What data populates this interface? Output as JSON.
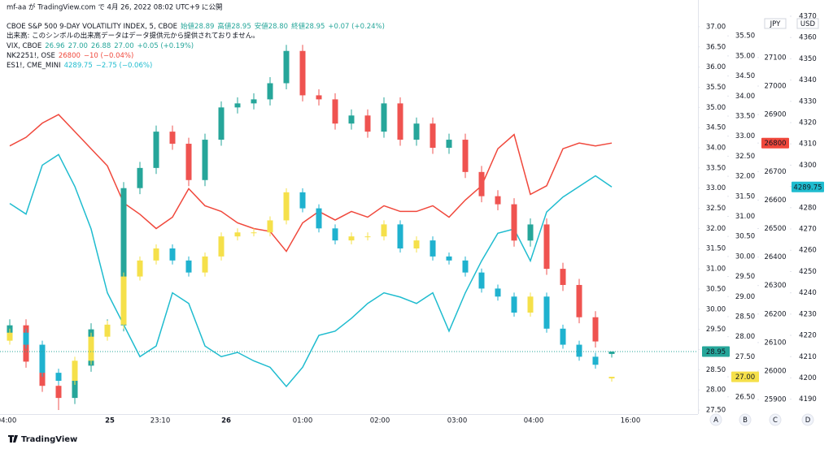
{
  "header": "mf-aa が TradingView.com で 4月 26, 2022 08:02 UTC+9 に公開",
  "volume_note": "出来高: このシンボルの出来高データはデータ提供元から提供されておりません。",
  "footer": "TradingView",
  "chart_data": {
    "type": "candlestick",
    "x_labels": [
      "04:00",
      "25",
      "23:10",
      "26",
      "01:00",
      "02:00",
      "03:00",
      "04:00",
      "16:00"
    ],
    "grid": false,
    "axes": [
      {
        "name": "A",
        "ylim": [
          27.4,
          37.26
        ],
        "yticks": [
          {
            "value": 27.5,
            "label": "27.50"
          },
          {
            "value": 28,
            "label": "28.00"
          },
          {
            "value": 28.5,
            "label": "28.50"
          },
          {
            "value": 29,
            "label": "29.00"
          },
          {
            "value": 29.5,
            "label": "29.50"
          },
          {
            "value": 30,
            "label": "30.00"
          },
          {
            "value": 30.5,
            "label": "30.50"
          },
          {
            "value": 31,
            "label": "31.00"
          },
          {
            "value": 31.5,
            "label": "31.50"
          },
          {
            "value": 32,
            "label": "32.00"
          },
          {
            "value": 32.5,
            "label": "32.50"
          },
          {
            "value": 33,
            "label": "33.00"
          },
          {
            "value": 33.5,
            "label": "33.50"
          },
          {
            "value": 34,
            "label": "34.00"
          },
          {
            "value": 34.5,
            "label": "34.50"
          },
          {
            "value": 35,
            "label": "35.00"
          },
          {
            "value": 35.5,
            "label": "35.50"
          },
          {
            "value": 36,
            "label": "36.00"
          },
          {
            "value": 36.5,
            "label": "36.50"
          },
          {
            "value": 37,
            "label": "37.00"
          }
        ]
      },
      {
        "name": "B",
        "ylim": [
          26.07,
          35.99
        ],
        "yticks": [
          {
            "value": 26.5,
            "label": "26.50"
          },
          {
            "value": 27,
            "label": "27.00"
          },
          {
            "value": 27.5,
            "label": "27.50"
          },
          {
            "value": 28,
            "label": "28.00"
          },
          {
            "value": 28.5,
            "label": "28.50"
          },
          {
            "value": 29,
            "label": "29.00"
          },
          {
            "value": 29.5,
            "label": "29.50"
          },
          {
            "value": 30,
            "label": "30.00"
          },
          {
            "value": 30.5,
            "label": "30.50"
          },
          {
            "value": 31,
            "label": "31.00"
          },
          {
            "value": 31.5,
            "label": "31.50"
          },
          {
            "value": 32,
            "label": "32.00"
          },
          {
            "value": 32.5,
            "label": "32.50"
          },
          {
            "value": 33,
            "label": "33.00"
          },
          {
            "value": 33.5,
            "label": "33.50"
          },
          {
            "value": 34,
            "label": "34.00"
          },
          {
            "value": 34.5,
            "label": "34.50"
          },
          {
            "value": 35,
            "label": "35.00"
          },
          {
            "value": 35.5,
            "label": "35.50"
          }
        ]
      },
      {
        "name": "C",
        "unit": "JPY",
        "ylim": [
          25849,
          27245
        ],
        "yticks": [
          25900,
          26000,
          26100,
          26200,
          26300,
          26400,
          26500,
          26600,
          26700,
          26800,
          26900,
          27000,
          27100
        ]
      },
      {
        "name": "D",
        "unit": "USD",
        "ylim": [
          4183,
          4370
        ],
        "yticks": [
          4190,
          4200,
          4210,
          4220,
          4230,
          4240,
          4250,
          4260,
          4270,
          4280,
          4290,
          4300,
          4310,
          4320,
          4330,
          4340,
          4350,
          4360,
          4370
        ]
      }
    ],
    "series": [
      {
        "name": "CBOE S&P 500 9-DAY VOLATILITY INDEX, 5, CBOE",
        "type": "candlestick",
        "axis": "A",
        "legend_values": [
          "始値28.89",
          "高値28.95",
          "安値28.80",
          "終値28.95",
          "+0.07 (+0.24%)"
        ],
        "legend_color": "#26a69a",
        "up_color": "#26a69a",
        "down_color": "#ef5350",
        "last_label": "28.95",
        "open": [
          29.3,
          29.6,
          28.7,
          28.1,
          27.8,
          28.6,
          29.5,
          29.6,
          33.0,
          33.5,
          34.4,
          34.1,
          33.2,
          34.2,
          35.0,
          35.1,
          35.2,
          35.6,
          36.4,
          35.3,
          35.2,
          34.6,
          34.8,
          34.4,
          35.1,
          34.2,
          34.6,
          34.0,
          34.2,
          33.4,
          32.8,
          32.6,
          31.7,
          32.1,
          31.0,
          30.6,
          29.8,
          28.89
        ],
        "high": [
          29.75,
          29.75,
          28.85,
          28.25,
          28.75,
          29.65,
          29.75,
          33.15,
          33.65,
          34.55,
          34.55,
          34.25,
          34.35,
          35.15,
          35.25,
          35.35,
          35.75,
          36.55,
          36.55,
          35.45,
          35.35,
          34.95,
          34.95,
          35.25,
          35.25,
          34.75,
          34.75,
          34.35,
          34.35,
          33.55,
          32.95,
          32.75,
          32.25,
          32.25,
          31.15,
          30.75,
          29.95,
          28.95
        ],
        "low": [
          29.15,
          28.55,
          27.95,
          27.5,
          27.65,
          28.45,
          29.35,
          29.45,
          32.85,
          33.35,
          33.95,
          33.05,
          33.05,
          34.05,
          34.85,
          34.95,
          35.05,
          35.45,
          35.15,
          35.05,
          34.45,
          34.45,
          34.25,
          34.25,
          34.05,
          34.05,
          33.85,
          33.85,
          33.25,
          32.65,
          32.45,
          31.55,
          31.55,
          30.85,
          30.45,
          29.65,
          29.05,
          28.8
        ],
        "close": [
          29.6,
          28.7,
          28.1,
          27.8,
          28.6,
          29.5,
          29.6,
          33.0,
          33.5,
          34.4,
          34.1,
          33.2,
          34.2,
          35.0,
          35.1,
          35.2,
          35.6,
          36.4,
          35.3,
          35.2,
          34.6,
          34.8,
          34.4,
          35.1,
          34.2,
          34.6,
          34.0,
          34.2,
          33.4,
          32.8,
          32.6,
          31.7,
          32.1,
          31.0,
          30.6,
          29.8,
          29.2,
          28.95
        ]
      },
      {
        "name": "VIX, CBOE",
        "type": "candlestick",
        "axis": "B",
        "legend_values": [
          "26.96",
          "27.00",
          "26.88",
          "27.00",
          "+0.05 (+0.19%)"
        ],
        "legend_color": "#26a69a",
        "up_color": "#f5e04a",
        "down_color": "#1fb2cf",
        "last_label": "27.00",
        "open": [
          27.9,
          28.1,
          27.8,
          27.1,
          26.9,
          27.4,
          28.0,
          28.3,
          29.5,
          29.9,
          30.2,
          29.9,
          29.6,
          30.0,
          30.5,
          30.6,
          30.6,
          30.9,
          31.6,
          31.2,
          30.7,
          30.4,
          30.5,
          30.5,
          30.8,
          30.2,
          30.4,
          30.0,
          29.9,
          29.6,
          29.2,
          29.0,
          28.6,
          29.0,
          28.2,
          27.8,
          27.5,
          26.96
        ],
        "high": [
          28.2,
          28.2,
          27.9,
          27.2,
          27.5,
          28.1,
          28.4,
          29.6,
          30.0,
          30.3,
          30.3,
          30.0,
          30.1,
          30.6,
          30.7,
          30.7,
          31.0,
          31.7,
          31.7,
          31.3,
          30.8,
          30.6,
          30.6,
          30.9,
          30.9,
          30.5,
          30.5,
          30.1,
          30.0,
          29.7,
          29.3,
          29.1,
          29.1,
          29.1,
          28.3,
          27.9,
          27.6,
          27.0
        ],
        "low": [
          27.8,
          27.7,
          27.0,
          26.8,
          26.8,
          27.3,
          27.9,
          28.2,
          29.4,
          29.8,
          29.8,
          29.5,
          29.5,
          29.9,
          30.4,
          30.5,
          30.5,
          30.8,
          31.1,
          30.6,
          30.3,
          30.3,
          30.4,
          30.4,
          30.1,
          30.1,
          29.9,
          29.8,
          29.5,
          29.1,
          28.9,
          28.5,
          28.5,
          28.1,
          27.7,
          27.4,
          27.2,
          26.88
        ],
        "close": [
          28.1,
          27.8,
          27.1,
          26.9,
          27.4,
          28.0,
          28.3,
          29.5,
          29.9,
          30.2,
          29.9,
          29.6,
          30.0,
          30.5,
          30.6,
          30.6,
          30.9,
          31.6,
          31.2,
          30.7,
          30.4,
          30.5,
          30.5,
          30.8,
          30.2,
          30.4,
          30.0,
          29.9,
          29.6,
          29.2,
          29.0,
          28.6,
          29.0,
          28.2,
          27.8,
          27.5,
          27.3,
          27.0
        ]
      },
      {
        "name": "NK2251!, OSE",
        "type": "line",
        "axis": "C",
        "color": "#f0483c",
        "legend_values": [
          "26800",
          "−10 (−0.04%)"
        ],
        "legend_color": "#f0483c",
        "last_label": "26800",
        "values": [
          26790,
          26820,
          26870,
          26900,
          26840,
          26780,
          26720,
          26590,
          26550,
          26500,
          26540,
          26640,
          26580,
          26560,
          26520,
          26500,
          26490,
          26420,
          26520,
          26560,
          26530,
          26560,
          26540,
          26580,
          26560,
          26560,
          26580,
          26540,
          26600,
          26650,
          26780,
          26830,
          26620,
          26650,
          26780,
          26800,
          26790,
          26800
        ]
      },
      {
        "name": "ES1!, CME_MINI",
        "type": "line",
        "axis": "D",
        "color": "#1fbccf",
        "legend_values": [
          "4289.75",
          "−2.75 (−0.06%)"
        ],
        "legend_color": "#1fbccf",
        "last_label": "4289.75",
        "values": [
          4282,
          4277,
          4300,
          4305,
          4290,
          4270,
          4240,
          4225,
          4210,
          4215,
          4240,
          4235,
          4215,
          4210,
          4212,
          4208,
          4205,
          4196,
          4205,
          4220,
          4222,
          4228,
          4235,
          4240,
          4238,
          4235,
          4240,
          4222,
          4240,
          4255,
          4268,
          4270,
          4255,
          4278,
          4285,
          4290,
          4295,
          4289.75
        ]
      }
    ]
  }
}
